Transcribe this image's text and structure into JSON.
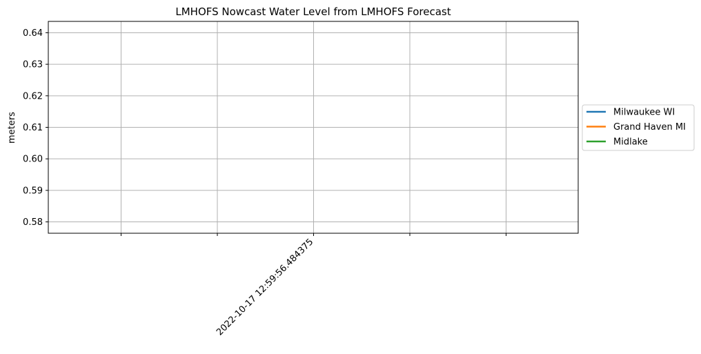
{
  "chart_data": {
    "type": "line",
    "title": "LMHOFS Nowcast Water Level from LMHOFS Forecast",
    "xlabel": "",
    "ylabel": "meters",
    "x_tick_labels": [
      "",
      "",
      "2022-10-17 12:59:56.484375",
      "",
      ""
    ],
    "y_ticks": [
      0.58,
      0.59,
      0.6,
      0.61,
      0.62,
      0.63,
      0.64
    ],
    "y_tick_labels": [
      "0.58",
      "0.59",
      "0.60",
      "0.61",
      "0.62",
      "0.63",
      "0.64"
    ],
    "ylim": [
      0.5764,
      0.6436
    ],
    "grid": true,
    "legend_position": "right-outside",
    "series": [
      {
        "name": "Milwaukee WI",
        "color": "#1f77b4",
        "values": []
      },
      {
        "name": "Grand Haven MI",
        "color": "#ff7f0e",
        "values": []
      },
      {
        "name": "Midlake",
        "color": "#2ca02c",
        "values": []
      }
    ]
  }
}
